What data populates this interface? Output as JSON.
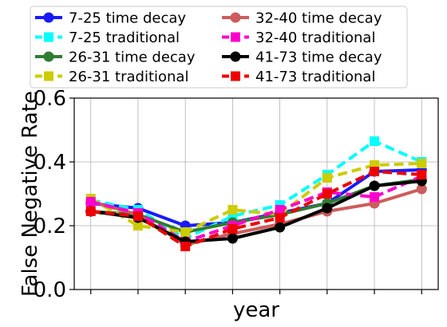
{
  "chart_data": {
    "type": "line",
    "title": "",
    "xlabel": "year",
    "ylabel": "False Negative Rate",
    "ylim": [
      0,
      0.6
    ],
    "yticks": [
      "0.0",
      "0.2",
      "0.4",
      "0.6"
    ],
    "x": [
      1,
      2,
      3,
      4,
      5,
      6,
      7,
      8
    ],
    "xtick_labels": [
      "",
      "",
      "",
      "",
      "",
      "",
      "",
      ""
    ],
    "grid": true,
    "legend": {
      "position": "top",
      "columns": 2
    },
    "series": [
      {
        "name": "7-25 time decay",
        "color": "#1a1aff",
        "dash": "solid",
        "marker": "circle",
        "values": [
          0.27,
          0.255,
          0.2,
          0.21,
          0.24,
          0.27,
          0.37,
          0.375
        ]
      },
      {
        "name": "7-25 traditional",
        "color": "#00ffff",
        "dash": "dashed",
        "marker": "square",
        "values": [
          0.28,
          0.25,
          0.16,
          0.23,
          0.265,
          0.36,
          0.465,
          0.4
        ]
      },
      {
        "name": "26-31 time decay",
        "color": "#2e7d32",
        "dash": "solid",
        "marker": "circle",
        "values": [
          0.245,
          0.235,
          0.18,
          0.21,
          0.235,
          0.27,
          0.325,
          0.345
        ]
      },
      {
        "name": "26-31 traditional",
        "color": "#cccc00",
        "dash": "dashed",
        "marker": "square",
        "values": [
          0.285,
          0.2,
          0.18,
          0.25,
          0.235,
          0.35,
          0.39,
          0.395
        ]
      },
      {
        "name": "32-40 time decay",
        "color": "#cd5c5c",
        "dash": "solid",
        "marker": "circle",
        "values": [
          0.275,
          0.235,
          0.14,
          0.175,
          0.205,
          0.245,
          0.27,
          0.315
        ]
      },
      {
        "name": "32-40 traditional",
        "color": "#ff00cc",
        "dash": "dashed",
        "marker": "square",
        "values": [
          0.275,
          0.24,
          0.15,
          0.2,
          0.25,
          0.305,
          0.29,
          0.355
        ]
      },
      {
        "name": "41-73 time decay",
        "color": "#000000",
        "dash": "solid",
        "marker": "circle",
        "values": [
          0.245,
          0.225,
          0.15,
          0.16,
          0.195,
          0.255,
          0.325,
          0.34
        ]
      },
      {
        "name": "41-73 traditional",
        "color": "#ee0000",
        "dash": "dashed",
        "marker": "square",
        "values": [
          0.245,
          0.23,
          0.135,
          0.19,
          0.225,
          0.3,
          0.37,
          0.36
        ]
      }
    ]
  }
}
